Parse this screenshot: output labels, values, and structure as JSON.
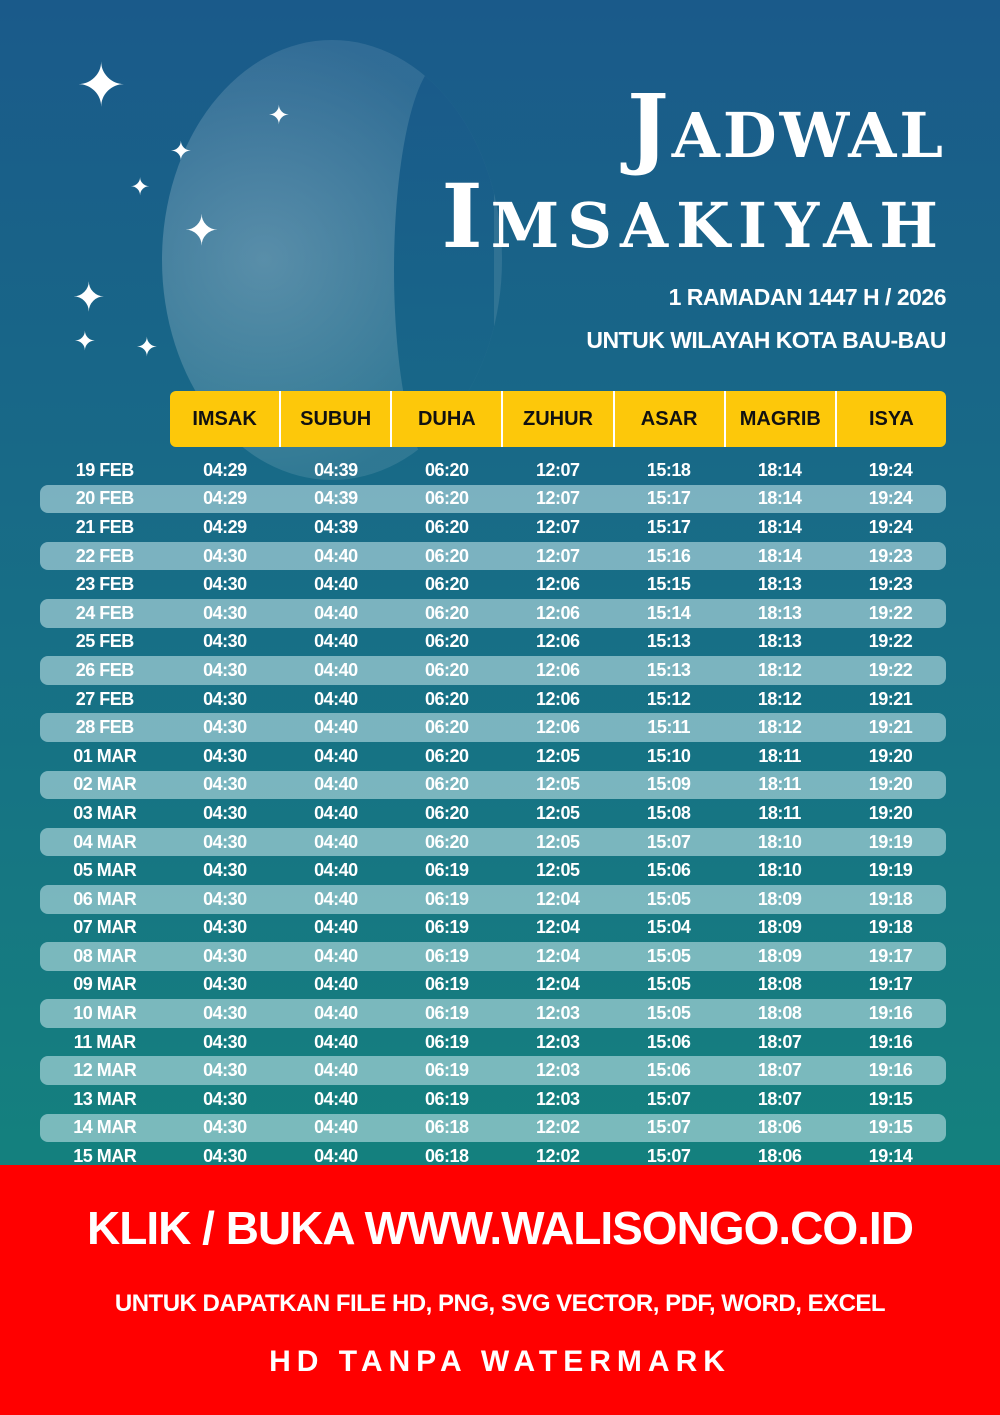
{
  "header": {
    "title_line1": "Jadwal",
    "title_line2": "Imsakiyah",
    "subtitle": "1 RAMADAN 1447 H / 2026",
    "region": "UNTUK WILAYAH KOTA BAU-BAU"
  },
  "colors": {
    "header_bg": "#fdc80a",
    "banner_bg": "#ff0000",
    "bg_top": "#1a5a8a",
    "bg_bottom": "#13897a"
  },
  "table": {
    "columns": [
      "IMSAK",
      "SUBUH",
      "DUHA",
      "ZUHUR",
      "ASAR",
      "MAGRIB",
      "ISYA"
    ],
    "rows": [
      [
        "19 FEB",
        "04:29",
        "04:39",
        "06:20",
        "12:07",
        "15:18",
        "18:14",
        "19:24"
      ],
      [
        "20 FEB",
        "04:29",
        "04:39",
        "06:20",
        "12:07",
        "15:17",
        "18:14",
        "19:24"
      ],
      [
        "21 FEB",
        "04:29",
        "04:39",
        "06:20",
        "12:07",
        "15:17",
        "18:14",
        "19:24"
      ],
      [
        "22 FEB",
        "04:30",
        "04:40",
        "06:20",
        "12:07",
        "15:16",
        "18:14",
        "19:23"
      ],
      [
        "23 FEB",
        "04:30",
        "04:40",
        "06:20",
        "12:06",
        "15:15",
        "18:13",
        "19:23"
      ],
      [
        "24 FEB",
        "04:30",
        "04:40",
        "06:20",
        "12:06",
        "15:14",
        "18:13",
        "19:22"
      ],
      [
        "25 FEB",
        "04:30",
        "04:40",
        "06:20",
        "12:06",
        "15:13",
        "18:13",
        "19:22"
      ],
      [
        "26 FEB",
        "04:30",
        "04:40",
        "06:20",
        "12:06",
        "15:13",
        "18:12",
        "19:22"
      ],
      [
        "27 FEB",
        "04:30",
        "04:40",
        "06:20",
        "12:06",
        "15:12",
        "18:12",
        "19:21"
      ],
      [
        "28 FEB",
        "04:30",
        "04:40",
        "06:20",
        "12:06",
        "15:11",
        "18:12",
        "19:21"
      ],
      [
        "01 MAR",
        "04:30",
        "04:40",
        "06:20",
        "12:05",
        "15:10",
        "18:11",
        "19:20"
      ],
      [
        "02 MAR",
        "04:30",
        "04:40",
        "06:20",
        "12:05",
        "15:09",
        "18:11",
        "19:20"
      ],
      [
        "03 MAR",
        "04:30",
        "04:40",
        "06:20",
        "12:05",
        "15:08",
        "18:11",
        "19:20"
      ],
      [
        "04 MAR",
        "04:30",
        "04:40",
        "06:20",
        "12:05",
        "15:07",
        "18:10",
        "19:19"
      ],
      [
        "05 MAR",
        "04:30",
        "04:40",
        "06:19",
        "12:05",
        "15:06",
        "18:10",
        "19:19"
      ],
      [
        "06 MAR",
        "04:30",
        "04:40",
        "06:19",
        "12:04",
        "15:05",
        "18:09",
        "19:18"
      ],
      [
        "07 MAR",
        "04:30",
        "04:40",
        "06:19",
        "12:04",
        "15:04",
        "18:09",
        "19:18"
      ],
      [
        "08 MAR",
        "04:30",
        "04:40",
        "06:19",
        "12:04",
        "15:05",
        "18:09",
        "19:17"
      ],
      [
        "09 MAR",
        "04:30",
        "04:40",
        "06:19",
        "12:04",
        "15:05",
        "18:08",
        "19:17"
      ],
      [
        "10 MAR",
        "04:30",
        "04:40",
        "06:19",
        "12:03",
        "15:05",
        "18:08",
        "19:16"
      ],
      [
        "11 MAR",
        "04:30",
        "04:40",
        "06:19",
        "12:03",
        "15:06",
        "18:07",
        "19:16"
      ],
      [
        "12 MAR",
        "04:30",
        "04:40",
        "06:19",
        "12:03",
        "15:06",
        "18:07",
        "19:16"
      ],
      [
        "13 MAR",
        "04:30",
        "04:40",
        "06:19",
        "12:03",
        "15:07",
        "18:07",
        "19:15"
      ],
      [
        "14 MAR",
        "04:30",
        "04:40",
        "06:18",
        "12:02",
        "15:07",
        "18:06",
        "19:15"
      ],
      [
        "15 MAR",
        "04:30",
        "04:40",
        "06:18",
        "12:02",
        "15:07",
        "18:06",
        "19:14"
      ]
    ]
  },
  "banner": {
    "line1": "KLIK / BUKA WWW.WALISONGO.CO.ID",
    "line2": "UNTUK DAPATKAN FILE HD, PNG, SVG VECTOR, PDF, WORD, EXCEL",
    "line3": "HD TANPA WATERMARK"
  }
}
